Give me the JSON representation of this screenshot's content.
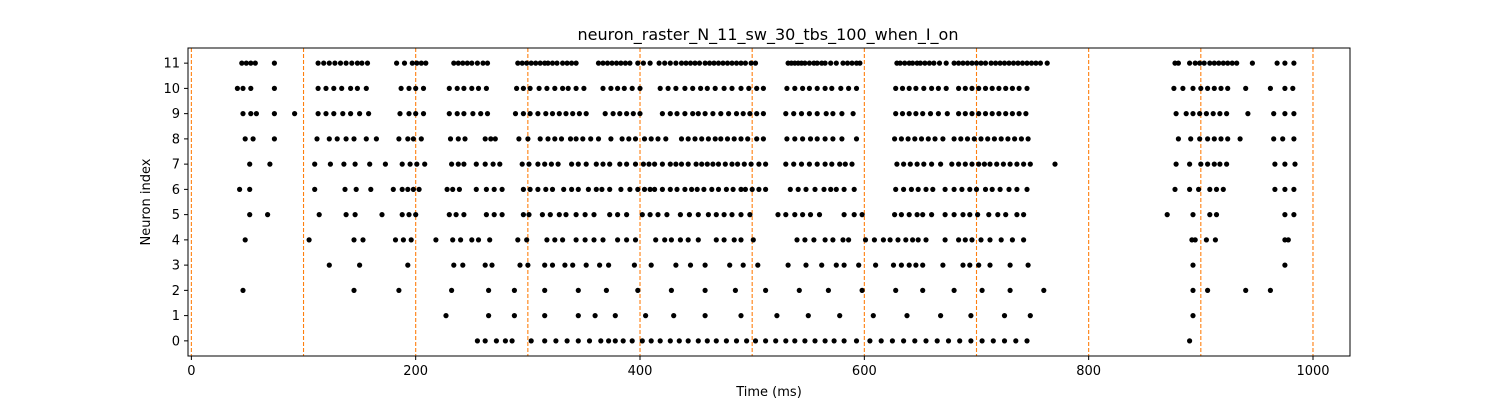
{
  "chart_data": {
    "type": "scatter",
    "title": "neuron_raster_N_11_sw_30_tbs_100_when_I_on",
    "xlabel": "Time (ms)",
    "ylabel": "Neuron index",
    "xlim": [
      -3,
      1033
    ],
    "ylim": [
      -0.6,
      11.6
    ],
    "xticks": [
      0,
      200,
      400,
      600,
      800,
      1000
    ],
    "yticks": [
      0,
      1,
      2,
      3,
      4,
      5,
      6,
      7,
      8,
      9,
      10,
      11
    ],
    "grid": false,
    "vlines": [
      0,
      100,
      200,
      300,
      400,
      500,
      600,
      700,
      800,
      900,
      1000
    ],
    "vline_color": "#ff7f0e",
    "marker_color": "#000000",
    "spikes": [
      [
        255,
        262,
        272,
        280,
        286,
        303,
        315,
        325,
        335,
        345,
        355,
        365,
        372,
        378,
        385,
        393,
        402,
        410,
        418,
        427,
        435,
        443,
        452,
        460,
        468,
        477,
        486,
        495,
        503,
        512,
        521,
        530,
        538,
        547,
        556,
        565,
        573,
        582,
        593,
        605,
        615,
        625,
        635,
        645,
        655,
        665,
        675,
        685,
        695,
        705,
        715,
        725,
        735,
        745,
        890
      ],
      [
        227,
        265,
        288,
        315,
        345,
        360,
        378,
        405,
        430,
        458,
        490,
        522,
        550,
        578,
        608,
        638,
        668,
        695,
        725,
        748,
        893
      ],
      [
        46,
        145,
        185,
        232,
        265,
        288,
        315,
        345,
        370,
        398,
        428,
        458,
        485,
        512,
        542,
        568,
        598,
        628,
        652,
        680,
        705,
        730,
        760,
        893,
        906,
        940,
        962
      ],
      [
        123,
        150,
        193,
        234,
        242,
        262,
        268,
        293,
        300,
        315,
        322,
        333,
        340,
        352,
        364,
        372,
        395,
        410,
        432,
        445,
        458,
        480,
        492,
        505,
        532,
        548,
        562,
        575,
        582,
        595,
        610,
        626,
        633,
        640,
        646,
        652,
        670,
        688,
        694,
        702,
        712,
        730,
        746,
        893,
        975
      ],
      [
        48,
        105,
        145,
        153,
        182,
        189,
        196,
        218,
        233,
        240,
        250,
        256,
        266,
        291,
        299,
        317,
        324,
        331,
        343,
        351,
        359,
        367,
        380,
        388,
        396,
        414,
        422,
        428,
        436,
        443,
        452,
        468,
        475,
        484,
        490,
        501,
        540,
        547,
        555,
        565,
        572,
        581,
        586,
        601,
        609,
        617,
        623,
        630,
        637,
        643,
        648,
        655,
        672,
        684,
        690,
        696,
        704,
        712,
        722,
        732,
        742,
        892,
        895,
        905,
        913,
        975,
        978
      ],
      [
        52,
        68,
        114,
        138,
        146,
        170,
        188,
        194,
        200,
        230,
        236,
        243,
        263,
        270,
        277,
        296,
        301,
        313,
        320,
        328,
        334,
        343,
        351,
        359,
        373,
        380,
        388,
        402,
        409,
        416,
        424,
        436,
        444,
        452,
        461,
        468,
        475,
        482,
        490,
        498,
        523,
        530,
        538,
        545,
        552,
        560,
        582,
        591,
        598,
        627,
        633,
        640,
        647,
        652,
        660,
        672,
        680,
        688,
        694,
        701,
        711,
        719,
        726,
        736,
        742,
        870,
        893,
        908,
        914,
        975,
        983
      ],
      [
        43,
        52,
        110,
        137,
        147,
        160,
        180,
        188,
        193,
        198,
        203,
        228,
        233,
        239,
        254,
        263,
        270,
        277,
        296,
        302,
        309,
        316,
        322,
        332,
        339,
        345,
        354,
        361,
        366,
        373,
        383,
        391,
        398,
        404,
        409,
        413,
        420,
        427,
        433,
        440,
        446,
        451,
        457,
        464,
        470,
        477,
        483,
        490,
        494,
        500,
        506,
        512,
        534,
        541,
        548,
        556,
        564,
        570,
        575,
        582,
        591,
        628,
        635,
        642,
        648,
        655,
        661,
        672,
        680,
        687,
        694,
        700,
        708,
        714,
        721,
        729,
        736,
        745,
        877,
        890,
        898,
        908,
        914,
        920,
        966,
        975,
        983
      ],
      [
        52,
        70,
        110,
        124,
        136,
        146,
        159,
        173,
        188,
        195,
        201,
        208,
        232,
        238,
        243,
        254,
        262,
        269,
        275,
        295,
        301,
        309,
        315,
        321,
        327,
        339,
        345,
        352,
        361,
        367,
        373,
        382,
        388,
        396,
        403,
        408,
        413,
        420,
        427,
        432,
        437,
        443,
        450,
        455,
        460,
        465,
        470,
        476,
        482,
        487,
        493,
        499,
        506,
        512,
        530,
        537,
        544,
        551,
        558,
        565,
        571,
        578,
        583,
        589,
        629,
        635,
        641,
        647,
        653,
        660,
        668,
        678,
        684,
        690,
        696,
        702,
        707,
        712,
        718,
        724,
        730,
        736,
        742,
        748,
        770,
        878,
        890,
        900,
        906,
        912,
        917,
        923,
        966,
        975,
        984
      ],
      [
        48,
        55,
        74,
        112,
        123,
        130,
        138,
        145,
        156,
        165,
        185,
        193,
        198,
        205,
        231,
        238,
        244,
        262,
        267,
        271,
        292,
        300,
        311,
        318,
        324,
        330,
        338,
        343,
        349,
        356,
        363,
        374,
        384,
        390,
        396,
        404,
        410,
        416,
        423,
        437,
        443,
        449,
        455,
        461,
        467,
        472,
        478,
        484,
        490,
        496,
        504,
        510,
        531,
        538,
        545,
        552,
        558,
        565,
        572,
        580,
        593,
        627,
        633,
        639,
        645,
        651,
        657,
        663,
        670,
        680,
        686,
        692,
        698,
        704,
        710,
        716,
        722,
        728,
        734,
        740,
        746,
        880,
        891,
        899,
        906,
        912,
        918,
        924,
        935,
        965,
        973,
        983
      ],
      [
        46,
        53,
        58,
        74,
        92,
        113,
        120,
        127,
        135,
        142,
        150,
        158,
        186,
        194,
        200,
        207,
        230,
        237,
        243,
        251,
        258,
        264,
        289,
        296,
        302,
        309,
        316,
        322,
        328,
        334,
        340,
        346,
        352,
        369,
        376,
        382,
        388,
        394,
        400,
        420,
        427,
        433,
        440,
        447,
        452,
        458,
        465,
        472,
        479,
        486,
        492,
        498,
        504,
        510,
        530,
        537,
        544,
        551,
        558,
        566,
        572,
        580,
        590,
        628,
        634,
        640,
        646,
        652,
        659,
        666,
        674,
        684,
        690,
        696,
        702,
        708,
        714,
        720,
        726,
        732,
        738,
        744,
        878,
        887,
        893,
        899,
        905,
        911,
        917,
        923,
        942,
        965,
        975,
        983
      ],
      [
        41,
        46,
        53,
        74,
        113,
        120,
        127,
        134,
        142,
        148,
        156,
        187,
        194,
        200,
        207,
        230,
        237,
        243,
        250,
        256,
        263,
        290,
        296,
        302,
        310,
        317,
        324,
        331,
        336,
        343,
        350,
        367,
        374,
        380,
        386,
        393,
        400,
        418,
        425,
        432,
        440,
        447,
        454,
        460,
        467,
        475,
        482,
        490,
        497,
        504,
        510,
        531,
        538,
        545,
        551,
        558,
        565,
        571,
        579,
        586,
        593,
        628,
        634,
        640,
        646,
        653,
        660,
        666,
        673,
        684,
        690,
        696,
        702,
        708,
        714,
        720,
        726,
        732,
        738,
        745,
        876,
        884,
        893,
        900,
        906,
        912,
        918,
        924,
        940,
        962,
        975,
        982
      ],
      [
        45,
        49,
        53,
        57,
        74,
        113,
        118,
        123,
        128,
        133,
        138,
        143,
        148,
        152,
        157,
        183,
        190,
        197,
        201,
        205,
        209,
        234,
        238,
        242,
        246,
        250,
        255,
        260,
        264,
        291,
        295,
        299,
        303,
        307,
        311,
        315,
        318,
        322,
        326,
        331,
        335,
        339,
        343,
        363,
        367,
        371,
        375,
        379,
        383,
        387,
        391,
        398,
        403,
        409,
        417,
        422,
        427,
        432,
        437,
        441,
        445,
        449,
        453,
        458,
        462,
        466,
        470,
        474,
        478,
        482,
        486,
        490,
        494,
        499,
        503,
        532,
        535,
        538,
        541,
        544,
        547,
        551,
        555,
        558,
        562,
        565,
        570,
        575,
        581,
        585,
        589,
        593,
        596,
        629,
        632,
        636,
        640,
        643,
        647,
        650,
        654,
        658,
        662,
        667,
        673,
        680,
        684,
        688,
        692,
        696,
        700,
        704,
        708,
        713,
        717,
        721,
        725,
        729,
        733,
        737,
        741,
        745,
        749,
        753,
        757,
        763,
        877,
        880,
        890,
        895,
        899,
        903,
        908,
        912,
        916,
        920,
        924,
        928,
        932,
        946,
        968,
        975,
        983
      ]
    ]
  }
}
